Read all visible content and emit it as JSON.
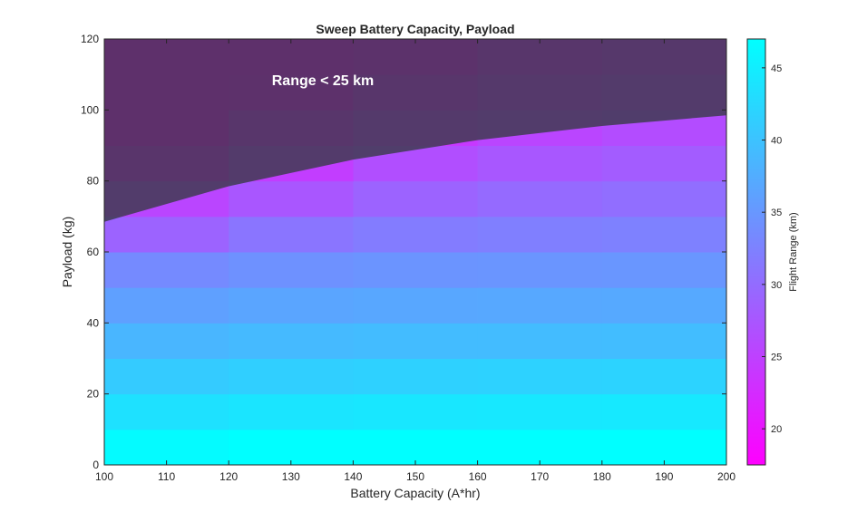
{
  "chart_data": {
    "type": "heatmap",
    "title": "Sweep Battery Capacity, Payload",
    "xlabel": "Battery Capacity (A*hr)",
    "ylabel": "Payload (kg)",
    "colorbar_label": "Flight Range (km)",
    "annotation": "Range < 25 km",
    "xlim": [
      100,
      200
    ],
    "ylim": [
      0,
      120
    ],
    "clim": [
      17.5,
      47
    ],
    "colormap": {
      "low": "#ff00ff",
      "high": "#00ffff"
    },
    "x_ticks": [
      100,
      110,
      120,
      130,
      140,
      150,
      160,
      170,
      180,
      190,
      200
    ],
    "y_ticks": [
      0,
      20,
      40,
      60,
      80,
      100,
      120
    ],
    "colorbar_ticks": [
      20,
      25,
      30,
      35,
      40,
      45
    ],
    "x_edges": [
      100,
      120,
      140,
      160,
      180,
      200
    ],
    "y_edges": [
      0,
      10,
      20,
      30,
      40,
      50,
      60,
      70,
      80,
      90,
      100,
      110,
      120
    ],
    "range_km": [
      [
        46.5,
        47.0,
        47.0,
        47.0,
        47.0
      ],
      [
        43.5,
        44.0,
        44.2,
        44.3,
        44.4
      ],
      [
        41.0,
        41.5,
        41.7,
        41.8,
        41.9
      ],
      [
        38.5,
        39.0,
        39.2,
        39.3,
        39.4
      ],
      [
        36.0,
        36.6,
        36.8,
        36.9,
        37.0
      ],
      [
        33.5,
        34.3,
        34.6,
        34.7,
        34.8
      ],
      [
        29.0,
        31.0,
        31.8,
        32.2,
        32.4
      ],
      [
        25.5,
        27.5,
        29.0,
        29.8,
        30.2
      ],
      [
        21.0,
        24.5,
        26.5,
        27.6,
        28.2
      ],
      [
        18.0,
        21.5,
        24.0,
        25.5,
        26.3
      ],
      [
        17.5,
        18.5,
        21.5,
        23.5,
        24.5
      ],
      [
        17.5,
        17.5,
        19.0,
        21.5,
        22.8
      ]
    ],
    "boundary_25km": {
      "x": [
        100,
        120,
        140,
        160,
        180,
        200
      ],
      "y": [
        68.5,
        78.5,
        86,
        91.5,
        95.5,
        98.5
      ]
    },
    "masked_region_color": "#3a3a4a"
  }
}
